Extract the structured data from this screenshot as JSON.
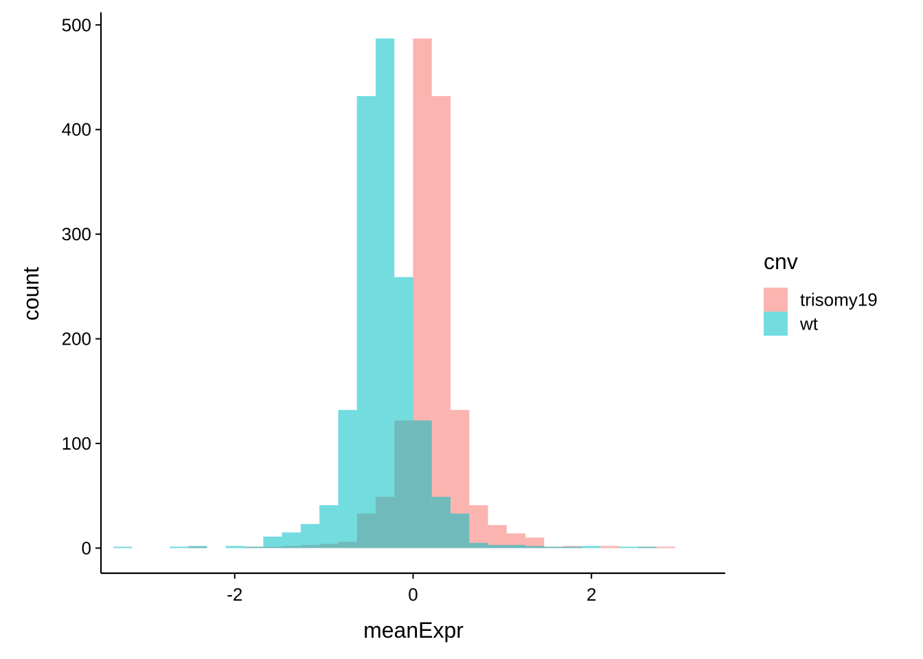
{
  "chart_data": {
    "type": "histogram",
    "xlabel": "meanExpr",
    "ylabel": "count",
    "xlim": [
      -3.5,
      3.5
    ],
    "ylim": [
      -24,
      512
    ],
    "x_ticks": [
      -2,
      0,
      2
    ],
    "x_tick_labels": [
      "-2",
      "0",
      "2"
    ],
    "y_ticks": [
      0,
      100,
      200,
      300,
      400,
      500
    ],
    "y_tick_labels": [
      "0",
      "100",
      "200",
      "300",
      "400",
      "500"
    ],
    "bin_width": 0.21,
    "grid": false,
    "legend": {
      "title": "cnv",
      "placement": "right"
    },
    "series": [
      {
        "name": "trisomy19",
        "color": "#F8766D",
        "bins": [
          {
            "x0": -2.52,
            "x1": -2.31,
            "count": 1
          },
          {
            "x0": -1.89,
            "x1": -1.68,
            "count": 1
          },
          {
            "x0": -1.68,
            "x1": -1.47,
            "count": 1
          },
          {
            "x0": -1.47,
            "x1": -1.26,
            "count": 2
          },
          {
            "x0": -1.26,
            "x1": -1.05,
            "count": 3
          },
          {
            "x0": -1.05,
            "x1": -0.84,
            "count": 4
          },
          {
            "x0": -0.84,
            "x1": -0.63,
            "count": 6
          },
          {
            "x0": -0.63,
            "x1": -0.42,
            "count": 33
          },
          {
            "x0": -0.42,
            "x1": -0.21,
            "count": 49
          },
          {
            "x0": -0.21,
            "x1": 0.0,
            "count": 122
          },
          {
            "x0": 0.0,
            "x1": 0.21,
            "count": 487
          },
          {
            "x0": 0.21,
            "x1": 0.42,
            "count": 432
          },
          {
            "x0": 0.42,
            "x1": 0.63,
            "count": 132
          },
          {
            "x0": 0.63,
            "x1": 0.84,
            "count": 41
          },
          {
            "x0": 0.84,
            "x1": 1.05,
            "count": 22
          },
          {
            "x0": 1.05,
            "x1": 1.26,
            "count": 14
          },
          {
            "x0": 1.26,
            "x1": 1.47,
            "count": 10
          },
          {
            "x0": 1.47,
            "x1": 1.68,
            "count": 1
          },
          {
            "x0": 1.68,
            "x1": 1.89,
            "count": 2
          },
          {
            "x0": 2.1,
            "x1": 2.31,
            "count": 2
          },
          {
            "x0": 2.52,
            "x1": 2.73,
            "count": 1
          },
          {
            "x0": 2.73,
            "x1": 2.94,
            "count": 1
          }
        ]
      },
      {
        "name": "wt",
        "color": "#00BFC4",
        "bins": [
          {
            "x0": -3.36,
            "x1": -3.15,
            "count": 1
          },
          {
            "x0": -2.73,
            "x1": -2.52,
            "count": 1
          },
          {
            "x0": -2.52,
            "x1": -2.31,
            "count": 2
          },
          {
            "x0": -2.1,
            "x1": -1.89,
            "count": 2
          },
          {
            "x0": -1.89,
            "x1": -1.68,
            "count": 1
          },
          {
            "x0": -1.68,
            "x1": -1.47,
            "count": 11
          },
          {
            "x0": -1.47,
            "x1": -1.26,
            "count": 15
          },
          {
            "x0": -1.26,
            "x1": -1.05,
            "count": 23
          },
          {
            "x0": -1.05,
            "x1": -0.84,
            "count": 41
          },
          {
            "x0": -0.84,
            "x1": -0.63,
            "count": 132
          },
          {
            "x0": -0.63,
            "x1": -0.42,
            "count": 432
          },
          {
            "x0": -0.42,
            "x1": -0.21,
            "count": 487
          },
          {
            "x0": -0.21,
            "x1": 0.0,
            "count": 259
          },
          {
            "x0": 0.0,
            "x1": 0.21,
            "count": 122
          },
          {
            "x0": 0.21,
            "x1": 0.42,
            "count": 49
          },
          {
            "x0": 0.42,
            "x1": 0.63,
            "count": 33
          },
          {
            "x0": 0.63,
            "x1": 0.84,
            "count": 5
          },
          {
            "x0": 0.84,
            "x1": 1.05,
            "count": 3
          },
          {
            "x0": 1.05,
            "x1": 1.26,
            "count": 3
          },
          {
            "x0": 1.26,
            "x1": 1.47,
            "count": 2
          },
          {
            "x0": 1.47,
            "x1": 1.68,
            "count": 1
          },
          {
            "x0": 1.68,
            "x1": 1.89,
            "count": 1
          },
          {
            "x0": 1.89,
            "x1": 2.1,
            "count": 2
          },
          {
            "x0": 2.31,
            "x1": 2.52,
            "count": 1
          },
          {
            "x0": 2.52,
            "x1": 2.73,
            "count": 1
          }
        ]
      }
    ]
  }
}
